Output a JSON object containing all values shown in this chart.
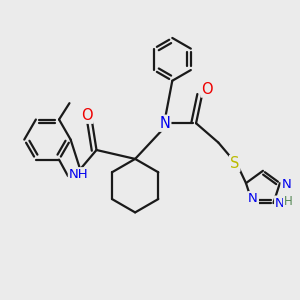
{
  "background_color": "#ebebeb",
  "bond_color": "#1a1a1a",
  "atom_colors": {
    "N": "#0000ee",
    "O": "#ee0000",
    "S": "#bbbb00",
    "H": "#558855",
    "C": "#1a1a1a"
  },
  "lw": 1.6,
  "fs": 8.5
}
